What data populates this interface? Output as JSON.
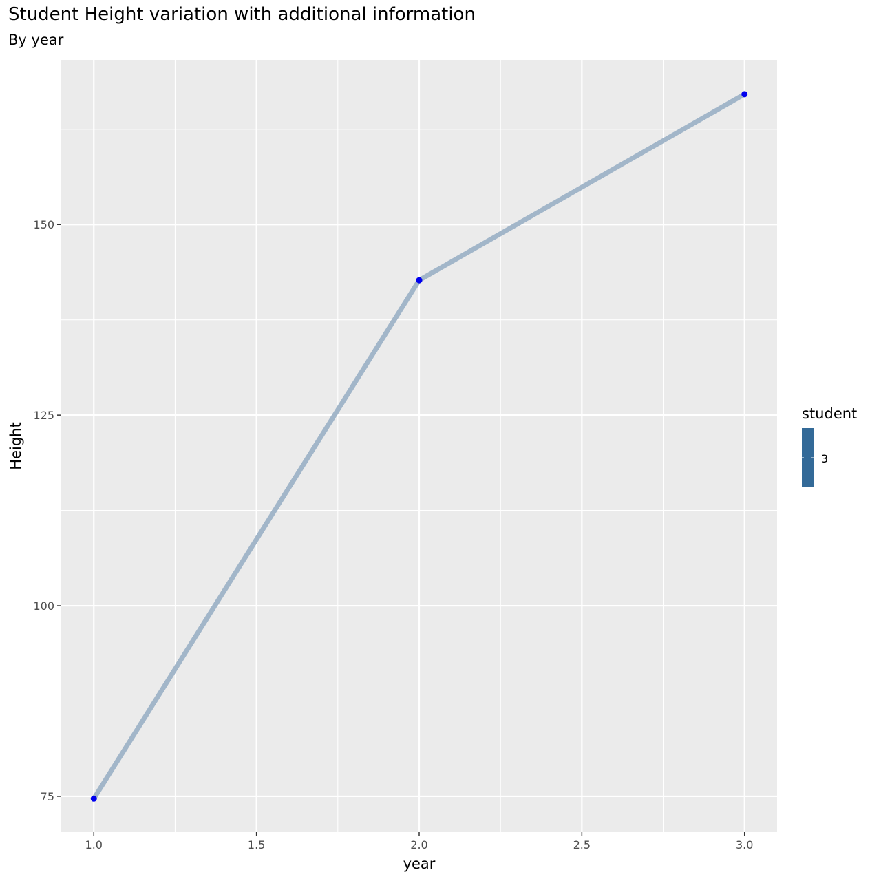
{
  "chart_data": {
    "type": "line",
    "title": "Student Height variation with additional information",
    "subtitle": "By year",
    "xlabel": "year",
    "ylabel": "Height",
    "xlim": [
      0.9,
      3.1
    ],
    "ylim": [
      70.3,
      171.6
    ],
    "x_ticks": [
      1.0,
      1.5,
      2.0,
      2.5,
      3.0
    ],
    "x_tick_labels": [
      "1.0",
      "1.5",
      "2.0",
      "2.5",
      "3.0"
    ],
    "y_ticks": [
      75,
      100,
      125,
      150
    ],
    "y_tick_labels": [
      "75",
      "100",
      "125",
      "150"
    ],
    "x_minor_ticks": [
      1.25,
      1.75,
      2.25,
      2.75
    ],
    "y_minor_ticks": [
      87.5,
      112.5,
      137.5,
      162.5
    ],
    "grid": true,
    "series": [
      {
        "x": [
          1,
          2,
          3
        ],
        "values": [
          74.7,
          142.7,
          167.1
        ],
        "line_color": "#a2b6c9",
        "point_color": "#0000ee"
      }
    ],
    "legend": {
      "title": "student",
      "label": "3",
      "color": "#336a98",
      "placement": "right"
    },
    "colors": {
      "panel": "#ebebeb",
      "grid": "#ffffff",
      "tick": "#333333"
    }
  }
}
